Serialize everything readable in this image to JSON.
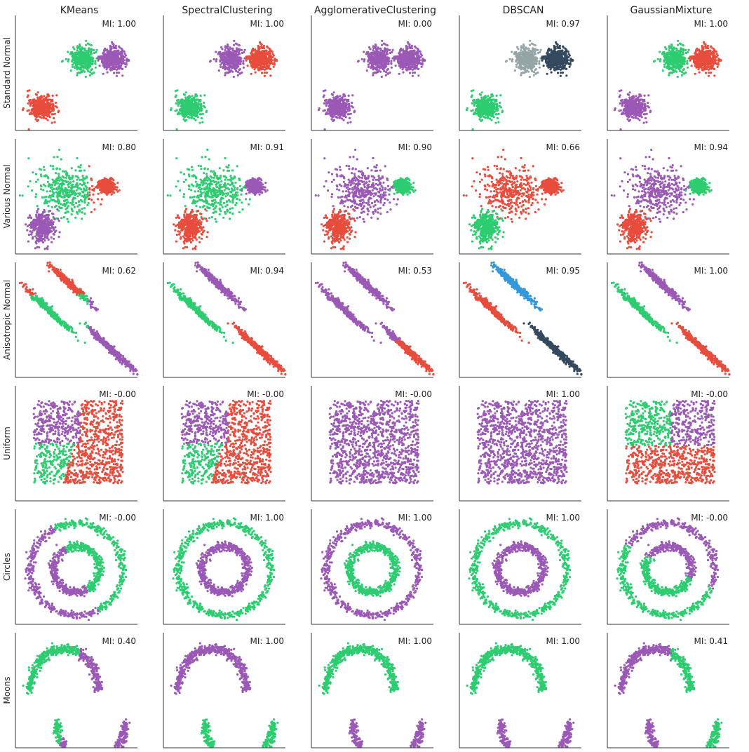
{
  "chart_data": {
    "type": "scatter",
    "title": "",
    "xlabel": "",
    "ylabel": "",
    "grid": false,
    "methods": [
      "KMeans",
      "SpectralClustering",
      "AgglomerativeClustering",
      "DBSCAN",
      "GaussianMixture"
    ],
    "datasets": [
      "Standard Normal",
      "Various Normal",
      "Anisotropic Normal",
      "Uniform",
      "Circles",
      "Moons"
    ],
    "mi_prefix": "MI: ",
    "mi_scores": [
      [
        "1.00",
        "1.00",
        "0.00",
        "0.97",
        "1.00"
      ],
      [
        "0.80",
        "0.91",
        "0.90",
        "0.66",
        "0.94"
      ],
      [
        "0.62",
        "0.94",
        "0.53",
        "0.95",
        "1.00"
      ],
      [
        "-0.00",
        "-0.00",
        "-0.00",
        "1.00",
        "-0.00"
      ],
      [
        "-0.00",
        "1.00",
        "1.00",
        "1.00",
        "-0.00"
      ],
      [
        "0.40",
        "1.00",
        "1.00",
        "1.00",
        "0.41"
      ]
    ],
    "palette": {
      "purple": "#9b59b6",
      "green": "#2ecc71",
      "red": "#e74c3c",
      "gray": "#95a5a6",
      "navy": "#34495e",
      "blue": "#3498db"
    },
    "points_per_panel": 1200
  }
}
